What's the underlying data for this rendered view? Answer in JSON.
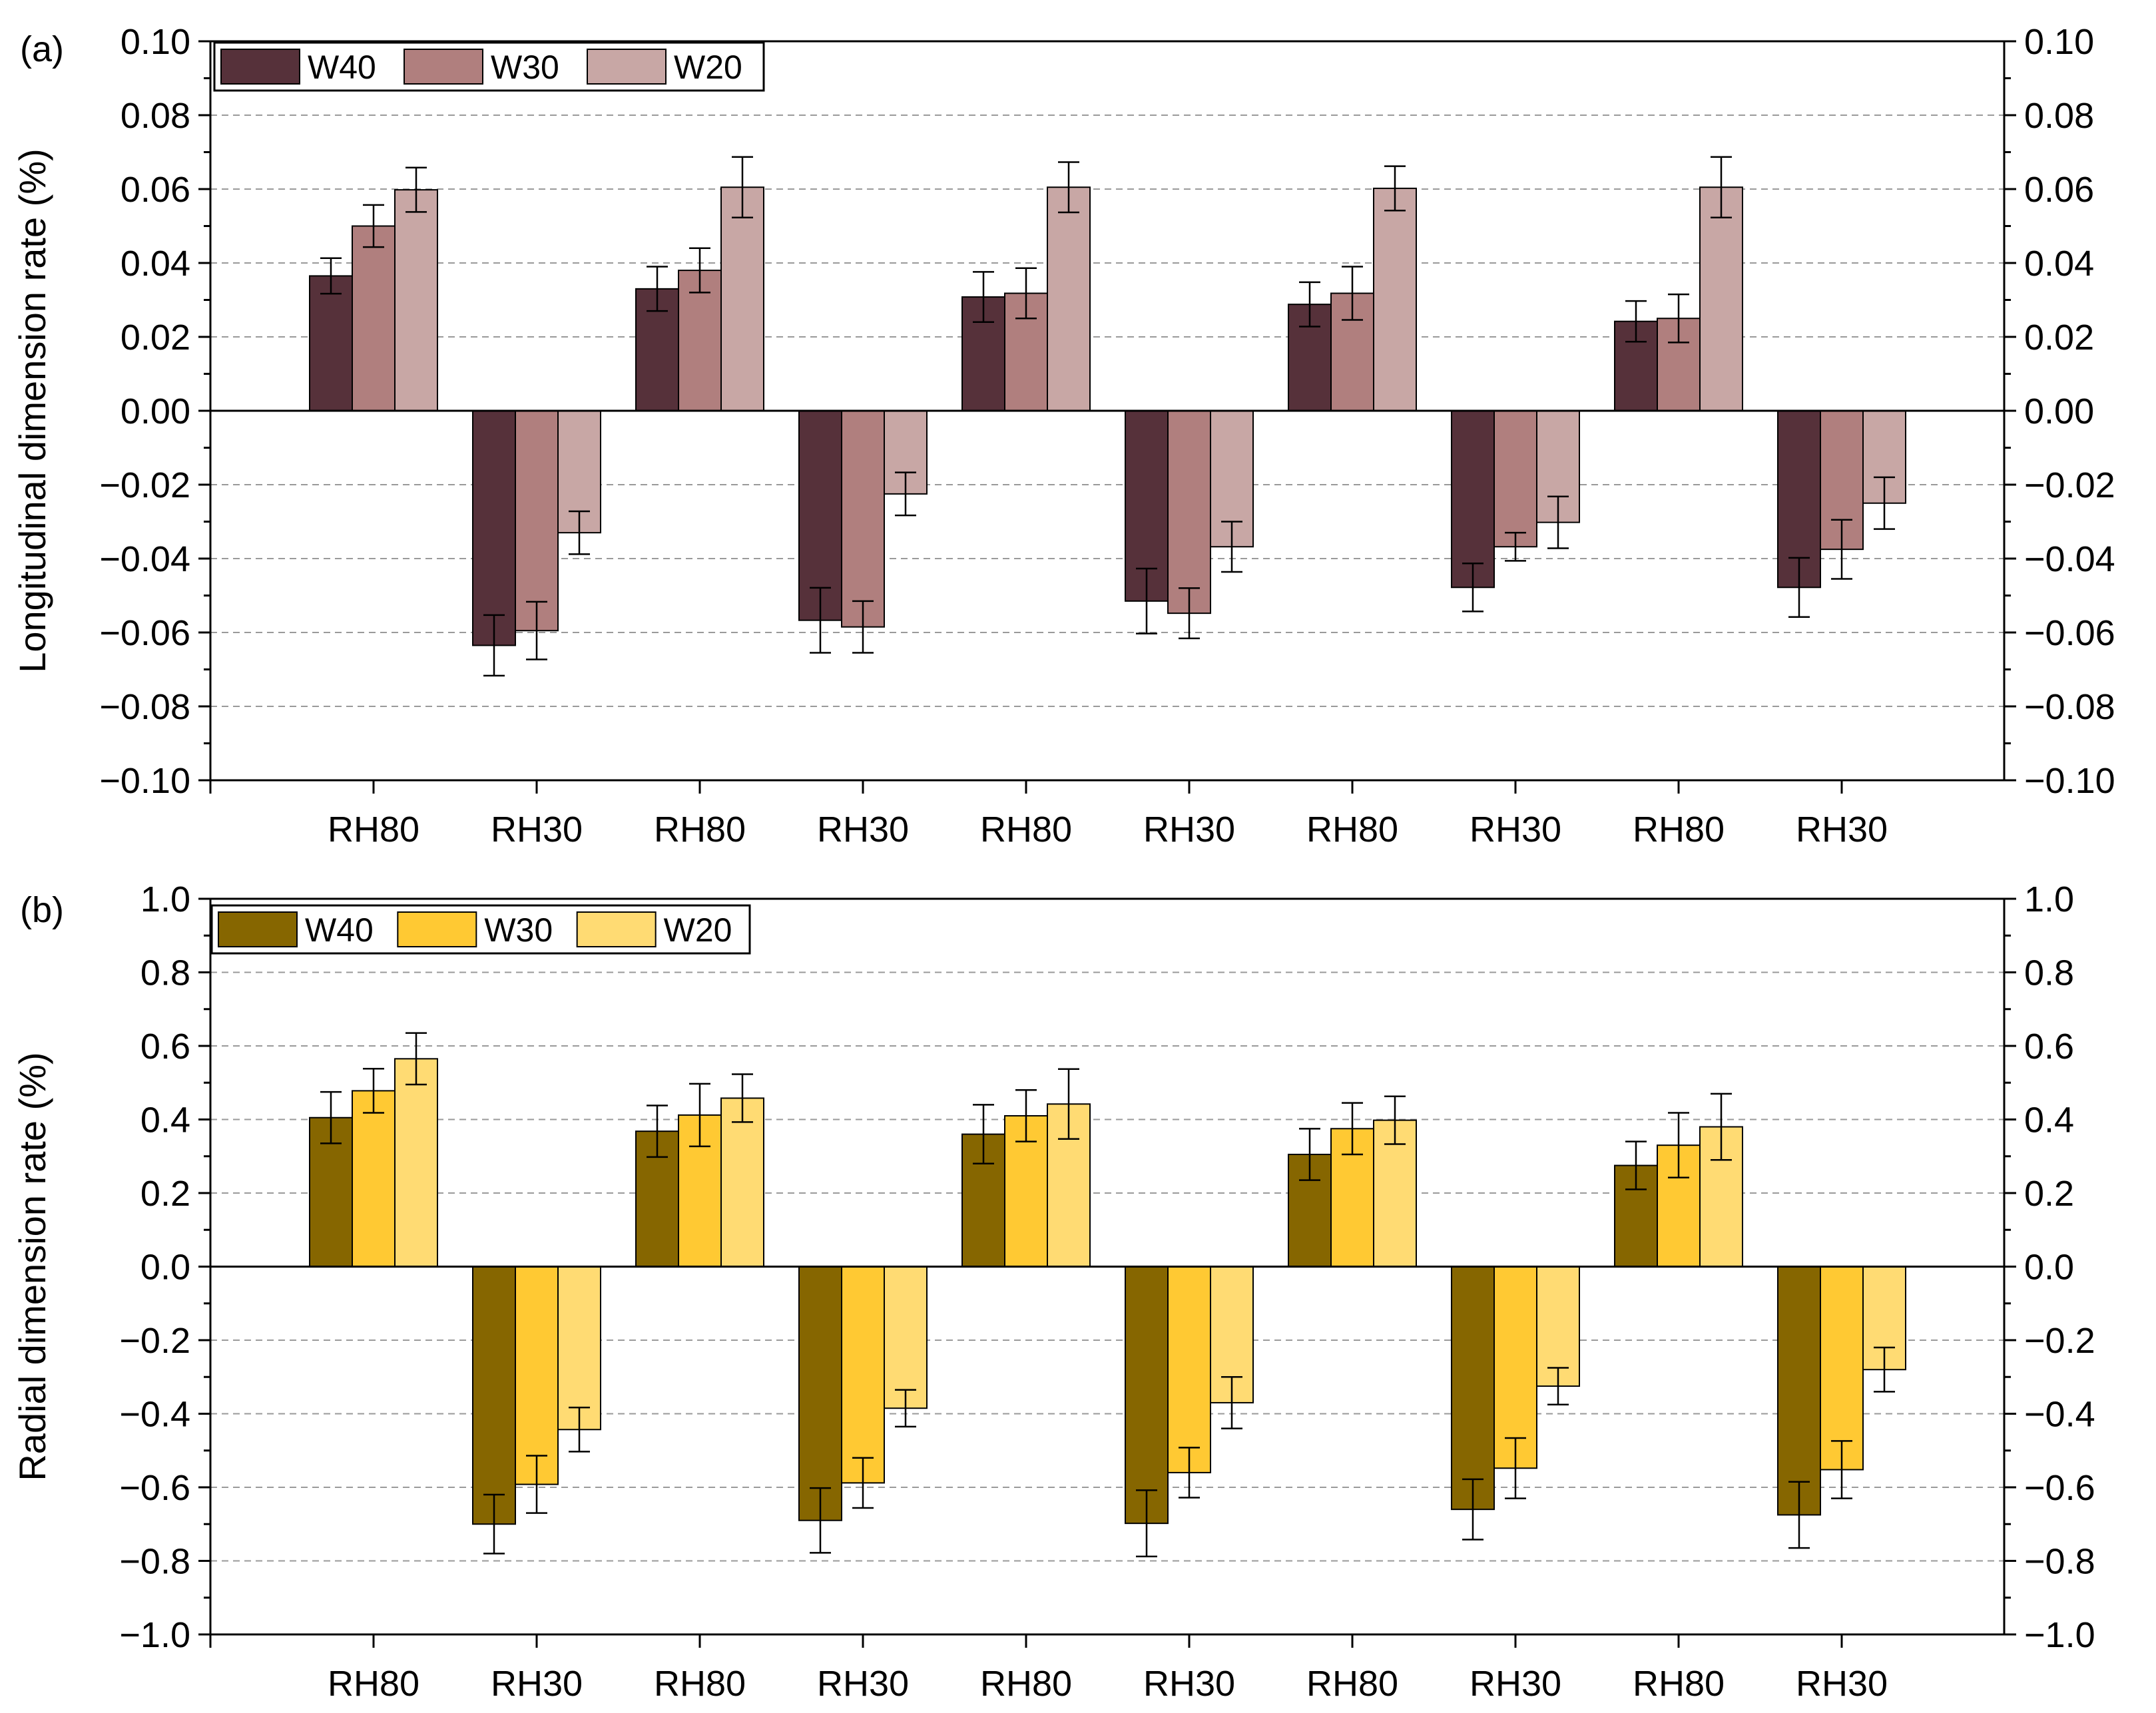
{
  "chart_data": [
    {
      "type": "bar",
      "panel_label": "(a)",
      "ylabel": "Longitudinal dimension rate (%)",
      "xlabel": "",
      "ylim": [
        -0.1,
        0.1
      ],
      "yticks": [
        -0.1,
        -0.08,
        -0.06,
        -0.04,
        -0.02,
        0.0,
        0.02,
        0.04,
        0.06,
        0.08,
        0.1
      ],
      "ytick_labels": [
        "−0.10",
        "−0.08",
        "−0.06",
        "−0.04",
        "−0.02",
        "0.00",
        "0.02",
        "0.04",
        "0.06",
        "0.08",
        "0.10"
      ],
      "grid": "horizontal dashed",
      "legend_position": "top-left",
      "categories": [
        "RH80",
        "RH30",
        "RH80",
        "RH30",
        "RH80",
        "RH30",
        "RH80",
        "RH30",
        "RH80",
        "RH30"
      ],
      "series": [
        {
          "name": "W40",
          "color": "#56313A",
          "values": [
            0.0365,
            -0.0635,
            0.033,
            -0.0567,
            0.0308,
            -0.0515,
            0.0288,
            -0.0478,
            0.0242,
            -0.0478
          ],
          "errors": [
            0.0048,
            0.0082,
            0.006,
            0.0088,
            0.0068,
            0.0088,
            0.006,
            0.0065,
            0.0055,
            0.008
          ]
        },
        {
          "name": "W30",
          "color": "#B07F7E",
          "values": [
            0.05,
            -0.0595,
            0.038,
            -0.0585,
            0.0318,
            -0.0548,
            0.0318,
            -0.0368,
            0.025,
            -0.0375
          ],
          "errors": [
            0.0057,
            0.0078,
            0.006,
            0.007,
            0.0068,
            0.0068,
            0.0072,
            0.0038,
            0.0065,
            0.008
          ]
        },
        {
          "name": "W20",
          "color": "#C8A7A5",
          "values": [
            0.0598,
            -0.033,
            0.0605,
            -0.0225,
            0.0605,
            -0.0368,
            0.0602,
            -0.0302,
            0.0605,
            -0.025
          ],
          "errors": [
            0.006,
            0.0058,
            0.0082,
            0.0058,
            0.0068,
            0.0068,
            0.006,
            0.007,
            0.0082,
            0.007
          ]
        }
      ]
    },
    {
      "type": "bar",
      "panel_label": "(b)",
      "ylabel": "Radial dimension rate (%)",
      "xlabel": "",
      "ylim": [
        -1.0,
        1.0
      ],
      "yticks": [
        -1.0,
        -0.8,
        -0.6,
        -0.4,
        -0.2,
        0.0,
        0.2,
        0.4,
        0.6,
        0.8,
        1.0
      ],
      "ytick_labels": [
        "−1.0",
        "−0.8",
        "−0.6",
        "−0.4",
        "−0.2",
        "0.0",
        "0.2",
        "0.4",
        "0.6",
        "0.8",
        "1.0"
      ],
      "grid": "horizontal dashed",
      "legend_position": "top-left",
      "categories": [
        "RH80",
        "RH30",
        "RH80",
        "RH30",
        "RH80",
        "RH30",
        "RH80",
        "RH30",
        "RH80",
        "RH30"
      ],
      "series": [
        {
          "name": "W40",
          "color": "#866600",
          "values": [
            0.405,
            -0.7,
            0.368,
            -0.69,
            0.36,
            -0.698,
            0.305,
            -0.66,
            0.275,
            -0.675
          ],
          "errors": [
            0.07,
            0.08,
            0.07,
            0.088,
            0.08,
            0.09,
            0.07,
            0.082,
            0.065,
            0.09
          ]
        },
        {
          "name": "W30",
          "color": "#FFC933",
          "values": [
            0.478,
            -0.592,
            0.412,
            -0.588,
            0.41,
            -0.56,
            0.375,
            -0.548,
            0.33,
            -0.552
          ],
          "errors": [
            0.06,
            0.078,
            0.085,
            0.068,
            0.07,
            0.068,
            0.07,
            0.082,
            0.088,
            0.078
          ]
        },
        {
          "name": "W20",
          "color": "#FFDB73",
          "values": [
            0.565,
            -0.443,
            0.458,
            -0.385,
            0.442,
            -0.37,
            0.398,
            -0.325,
            0.38,
            -0.28
          ],
          "errors": [
            0.07,
            0.06,
            0.065,
            0.05,
            0.095,
            0.07,
            0.065,
            0.05,
            0.09,
            0.06
          ]
        }
      ]
    }
  ]
}
